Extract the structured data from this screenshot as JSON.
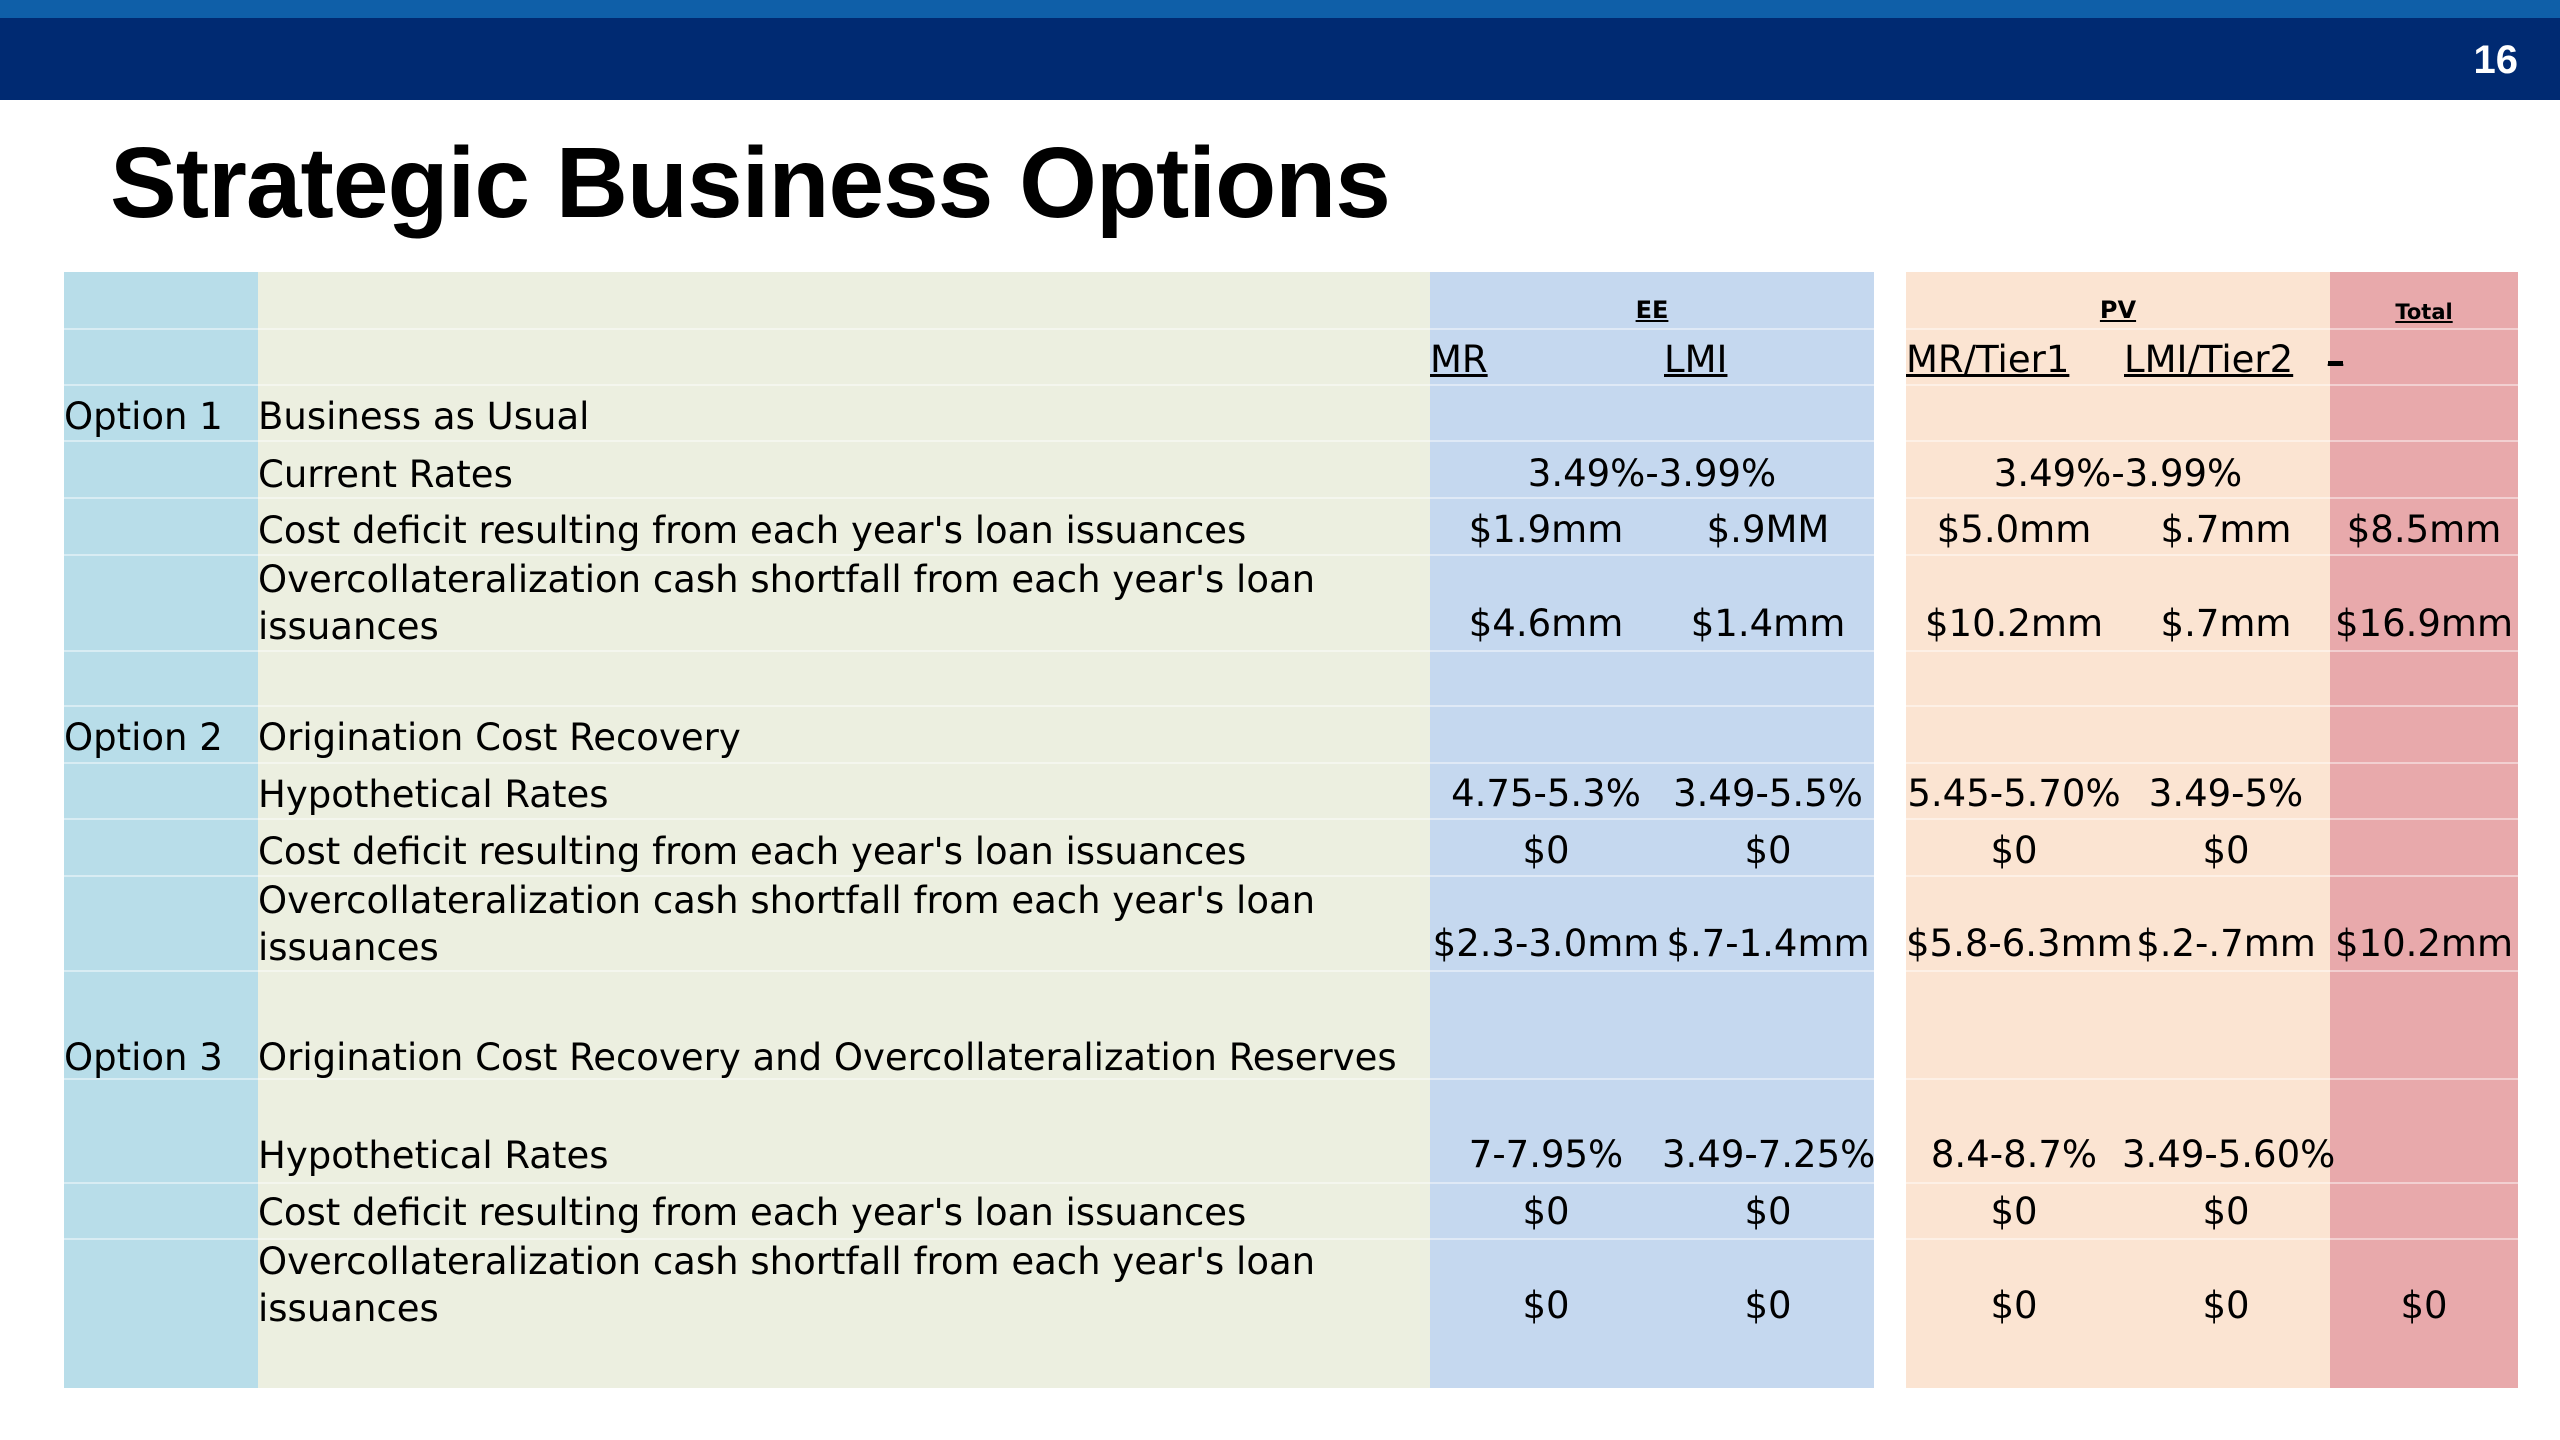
{
  "page_number": "16",
  "title": "Strategic Business Options",
  "headers": {
    "ee": "EE",
    "pv": "PV",
    "total": "Total",
    "ee_mr": "MR",
    "ee_lmi": "LMI",
    "pv_mr": "MR/Tier1",
    "pv_lmi": "LMI/Tier2",
    "total_blank": "_"
  },
  "options": [
    {
      "label": "Option 1",
      "title": "Business as Usual",
      "rows": [
        {
          "desc": "Current Rates",
          "ee_merged": "3.49%-3.99%",
          "pv_merged": "3.49%-3.99%"
        },
        {
          "desc": "Cost deficit resulting from each year's loan issuances",
          "ee_mr": "$1.9mm",
          "ee_lmi": "$.9MM",
          "pv_mr": "$5.0mm",
          "pv_lmi": "$.7mm",
          "total": "$8.5mm"
        },
        {
          "desc": "Overcollateralization cash shortfall from each year's loan issuances",
          "ee_mr": "$4.6mm",
          "ee_lmi": "$1.4mm",
          "pv_mr": "$10.2mm",
          "pv_lmi": "$.7mm",
          "total": "$16.9mm"
        }
      ]
    },
    {
      "label": "Option 2",
      "title": "Origination Cost Recovery",
      "rows": [
        {
          "desc": "Hypothetical Rates",
          "ee_mr": "4.75-5.3%",
          "ee_lmi": "3.49-5.5%",
          "pv_mr": "5.45-5.70%",
          "pv_lmi": "3.49-5%"
        },
        {
          "desc": "Cost deficit resulting from each year's loan issuances",
          "ee_mr": "$0",
          "ee_lmi": "$0",
          "pv_mr": "$0",
          "pv_lmi": "$0"
        },
        {
          "desc": "Overcollateralization cash shortfall from each year's loan issuances",
          "ee_mr": "$2.3-3.0mm",
          "ee_lmi": "$.7-1.4mm",
          "pv_mr": "$5.8-6.3mm",
          "pv_lmi": "$.2-.7mm",
          "total": "$10.2mm"
        }
      ]
    },
    {
      "label": "Option 3",
      "title": "Origination Cost Recovery and Overcollateralization Reserves",
      "rows": [
        {
          "desc": "Hypothetical Rates",
          "ee_mr": "7-7.95%",
          "ee_lmi": "3.49-7.25%",
          "pv_mr": "8.4-8.7%",
          "pv_lmi": "3.49-5.60%"
        },
        {
          "desc": "Cost deficit resulting from each year's loan issuances",
          "ee_mr": "$0",
          "ee_lmi": "$0",
          "pv_mr": "$0",
          "pv_lmi": "$0"
        },
        {
          "desc": "Overcollateralization cash shortfall from each year's loan issuances",
          "ee_mr": "$0",
          "ee_lmi": "$0",
          "pv_mr": "$0",
          "pv_lmi": "$0",
          "total": "$0"
        }
      ]
    }
  ],
  "colors": {
    "topbar_light": "#0f5fa8",
    "topbar_dark": "#002a72",
    "col_option": "#b8dde9",
    "col_desc": "#ecefe0",
    "col_ee": "#c5d8ef",
    "col_pv": "#fbe4d2",
    "col_total": "#e8a9ab"
  }
}
